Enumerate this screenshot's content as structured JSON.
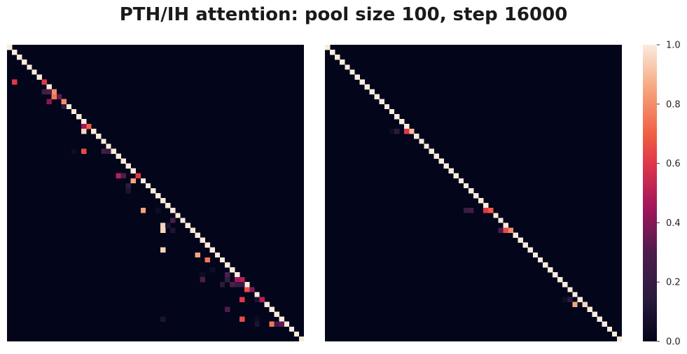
{
  "title": "PTH/IH attention: pool size 100, step 16000",
  "chart_data": [
    {
      "type": "heatmap",
      "size": 60,
      "base": "diagonal",
      "diag_value": 1.0,
      "cells": [
        [
          7,
          1,
          0.6
        ],
        [
          7,
          7,
          0.6
        ],
        [
          9,
          7,
          0.25
        ],
        [
          9,
          8,
          0.3
        ],
        [
          9,
          9,
          0.8
        ],
        [
          10,
          9,
          0.75
        ],
        [
          10,
          10,
          0.35
        ],
        [
          11,
          8,
          0.4
        ],
        [
          11,
          11,
          0.8
        ],
        [
          12,
          11,
          0.15
        ],
        [
          16,
          15,
          0.45
        ],
        [
          16,
          16,
          0.7
        ],
        [
          17,
          15,
          0.95
        ],
        [
          21,
          13,
          0.05
        ],
        [
          21,
          15,
          0.65
        ],
        [
          21,
          19,
          0.25
        ],
        [
          21,
          20,
          0.2
        ],
        [
          26,
          22,
          0.5
        ],
        [
          26,
          23,
          0.3
        ],
        [
          26,
          26,
          0.6
        ],
        [
          27,
          25,
          0.85
        ],
        [
          28,
          24,
          0.15
        ],
        [
          29,
          24,
          0.1
        ],
        [
          33,
          27,
          0.85
        ],
        [
          33,
          30,
          0.05
        ],
        [
          35,
          33,
          0.3
        ],
        [
          36,
          31,
          0.95
        ],
        [
          36,
          32,
          0.1
        ],
        [
          37,
          31,
          0.95
        ],
        [
          37,
          33,
          0.1
        ],
        [
          41,
          31,
          0.95
        ],
        [
          42,
          38,
          0.85
        ],
        [
          43,
          40,
          0.75
        ],
        [
          45,
          41,
          0.05
        ],
        [
          46,
          39,
          0.05
        ],
        [
          46,
          44,
          0.3
        ],
        [
          47,
          39,
          0.3
        ],
        [
          47,
          44,
          0.2
        ],
        [
          47,
          46,
          0.45
        ],
        [
          47,
          47,
          0.5
        ],
        [
          48,
          43,
          0.15
        ],
        [
          48,
          45,
          0.3
        ],
        [
          48,
          46,
          0.2
        ],
        [
          48,
          47,
          0.2
        ],
        [
          49,
          48,
          0.65
        ],
        [
          49,
          49,
          0.4
        ],
        [
          51,
          47,
          0.6
        ],
        [
          51,
          51,
          0.5
        ],
        [
          51,
          50,
          0.1
        ],
        [
          53,
          44,
          0.3
        ],
        [
          55,
          31,
          0.1
        ],
        [
          55,
          47,
          0.65
        ],
        [
          55,
          50,
          0.05
        ],
        [
          56,
          50,
          0.1
        ],
        [
          56,
          53,
          0.75
        ],
        [
          56,
          54,
          0.25
        ],
        [
          56,
          55,
          0.35
        ]
      ]
    },
    {
      "type": "heatmap",
      "size": 60,
      "base": "diagonal",
      "diag_value": 1.0,
      "cells": [
        [
          17,
          13,
          0.05
        ],
        [
          17,
          14,
          0.15
        ],
        [
          17,
          16,
          0.6
        ],
        [
          17,
          17,
          0.9
        ],
        [
          33,
          28,
          0.2
        ],
        [
          33,
          29,
          0.25
        ],
        [
          33,
          32,
          0.6
        ],
        [
          33,
          33,
          0.7
        ],
        [
          37,
          35,
          0.3
        ],
        [
          37,
          36,
          0.65
        ],
        [
          37,
          37,
          0.8
        ],
        [
          51,
          48,
          0.05
        ],
        [
          51,
          49,
          0.15
        ],
        [
          52,
          50,
          0.85
        ],
        [
          52,
          52,
          0.95
        ]
      ]
    }
  ],
  "colorbar": {
    "min": 0.0,
    "max": 1.0,
    "ticks": [
      0.0,
      0.2,
      0.4,
      0.6,
      0.8,
      1.0
    ],
    "tick_labels": [
      "0.0",
      "0.2",
      "0.4",
      "0.6",
      "0.8",
      "1.0"
    ]
  }
}
